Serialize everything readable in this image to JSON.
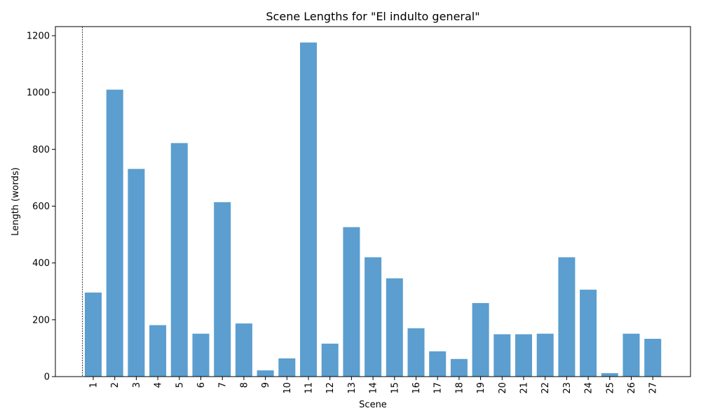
{
  "chart_data": {
    "type": "bar",
    "title": "Scene Lengths for \"El indulto general\"",
    "xlabel": "Scene",
    "ylabel": "Length (words)",
    "categories": [
      "1",
      "2",
      "3",
      "4",
      "5",
      "6",
      "7",
      "8",
      "9",
      "10",
      "11",
      "12",
      "13",
      "14",
      "15",
      "16",
      "17",
      "18",
      "19",
      "20",
      "21",
      "22",
      "23",
      "24",
      "25",
      "26",
      "27"
    ],
    "values": [
      296,
      1010,
      731,
      181,
      822,
      151,
      614,
      187,
      22,
      64,
      1176,
      116,
      526,
      420,
      346,
      170,
      89,
      62,
      259,
      149,
      149,
      151,
      420,
      306,
      12,
      151,
      133
    ],
    "ylim": [
      0,
      1232
    ],
    "yticks": [
      0,
      200,
      400,
      600,
      800,
      1000,
      1200
    ],
    "grid": false,
    "legend": "none",
    "x_tick_rotation": "vertical",
    "bar_color": "#5b9ecf",
    "marker_line": {
      "position": "left of first bar",
      "style": "dashed",
      "color": "#000000"
    }
  }
}
